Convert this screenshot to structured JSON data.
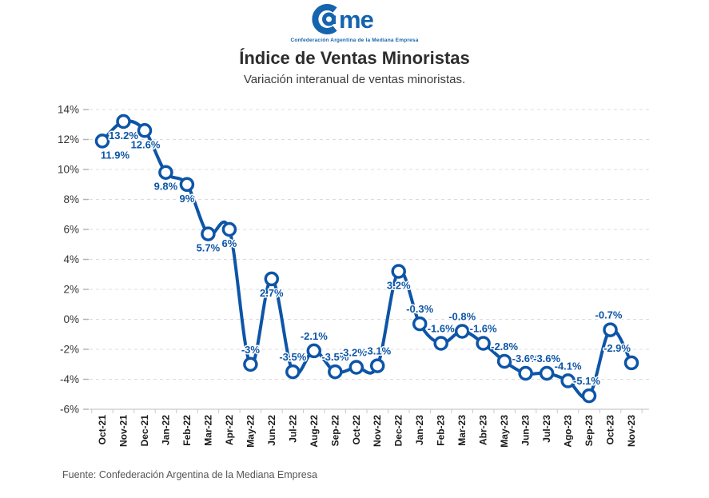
{
  "logo": {
    "brand": "Came",
    "brand_suffix": "me",
    "tagline": "Confederación Argentina de la Mediana Empresa"
  },
  "header": {
    "title": "Índice de Ventas Minoristas",
    "subtitle": "Variación interanual de ventas minoristas."
  },
  "footer": {
    "source": "Fuente: Confederación Argentina de la Mediana Empresa"
  },
  "colors": {
    "line": "#0d55a7",
    "marker_fill": "#ffffff",
    "label": "#0d55a7",
    "logo": "#1464ae",
    "grid": "#dcdcdc",
    "axis": "#c9c9c9",
    "tick": "#b5b5b5",
    "title": "#2d2d2d",
    "subtitle": "#3c3c3c",
    "xlabel": "#1a1a1a",
    "ylabel": "#333333",
    "footer": "#555555"
  },
  "chart_data": {
    "type": "line",
    "title": "Índice de Ventas Minoristas",
    "subtitle": "Variación interanual de ventas minoristas.",
    "xlabel": "",
    "ylabel": "",
    "categories": [
      "Oct-21",
      "Nov-21",
      "Dec-21",
      "Jan-22",
      "Feb-22",
      "Mar-22",
      "Apr-22",
      "May-22",
      "Jun-22",
      "Jul-22",
      "Aug-22",
      "Sep-22",
      "Oct-22",
      "Nov-22",
      "Dec-22",
      "Jan-23",
      "Feb-23",
      "Mar-23",
      "Abr-23",
      "May-23",
      "Jun-23",
      "Jul-23",
      "Ago-23",
      "Sep-23",
      "Oct-23",
      "Nov-23"
    ],
    "values": [
      11.9,
      13.2,
      12.6,
      9.8,
      9,
      5.7,
      6,
      -3,
      2.7,
      -3.5,
      -2.1,
      -3.5,
      -3.2,
      -3.1,
      3.2,
      -0.3,
      -1.6,
      -0.8,
      -1.6,
      -2.8,
      -3.6,
      -3.6,
      -4.1,
      -5.1,
      -0.7,
      -2.9
    ],
    "point_labels": [
      "11.9%",
      "13.2%",
      "12.6%",
      "9.8%",
      "9%",
      "5.7%",
      "6%",
      "-3%",
      "2.7%",
      "-3.5%",
      "-2.1%",
      "-3.5%",
      "-3.2%",
      "-3.1%",
      "3.2%",
      "-0.3%",
      "-1.6%",
      "-0.8%",
      "-1.6%",
      "-2.8%",
      "-3.6%",
      "-3.6%",
      "-4.1%",
      "-5.1%",
      "-0.7%",
      "-2.9%"
    ],
    "ylim": [
      -6,
      14
    ],
    "ytick_step": 2,
    "ytick_labels": [
      "14%",
      "12%",
      "10%",
      "8%",
      "6%",
      "4%",
      "2%",
      "0%",
      "-2%",
      "-4%",
      "-6%"
    ],
    "grid": "horizontal-dashed",
    "legend": "none",
    "smooth": true,
    "label_side_rule": "toward-zero",
    "label_dx": [
      16,
      0,
      1,
      0,
      0,
      0,
      0,
      0,
      0,
      0,
      0,
      0,
      -4,
      0,
      0,
      0,
      0,
      0,
      0,
      0,
      0,
      0,
      0,
      -3,
      -2,
      -18
    ]
  }
}
